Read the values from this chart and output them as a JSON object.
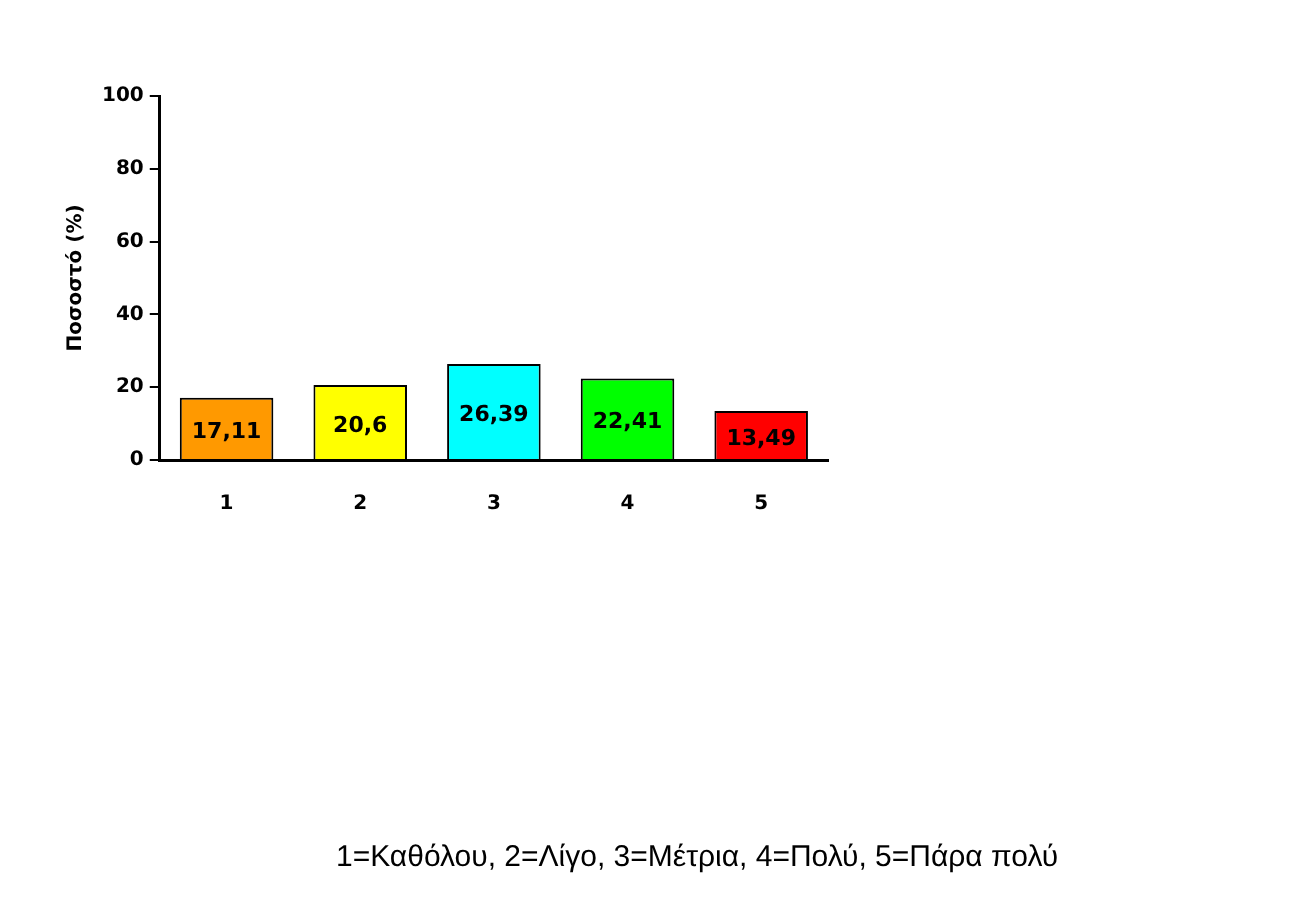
{
  "chart_data": {
    "type": "bar",
    "ylabel": "Ποσοστό (%)",
    "categories": [
      "1",
      "2",
      "3",
      "4",
      "5"
    ],
    "values": [
      17.11,
      20.6,
      26.39,
      22.41,
      13.49
    ],
    "colors": [
      "#ff9900",
      "#ffff00",
      "#00ffff",
      "#00ff00",
      "#ff0000"
    ],
    "value_labels": [
      "17,11",
      "20,6",
      "26,39",
      "22,41",
      "13,49"
    ],
    "ylim": [
      0,
      100
    ],
    "yticks": [
      0,
      20,
      40,
      60,
      80,
      100
    ],
    "grid": false,
    "legend": false,
    "annotations": [
      "1=Καθόλου, 2=Λίγο, 3=Μέτρια, 4=Πολύ, 5=Πάρα πολύ"
    ]
  }
}
